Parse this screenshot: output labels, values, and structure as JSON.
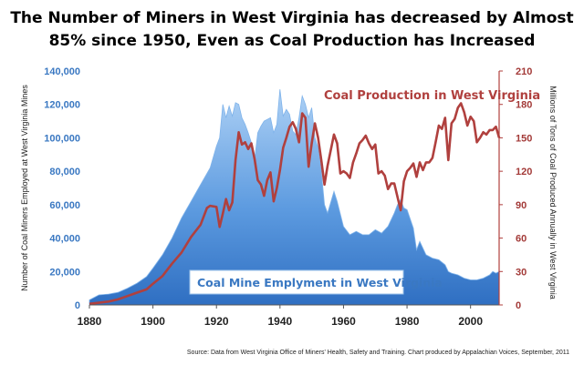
{
  "title_line1": "The Number of Miners in West Virginia has decreased by Almost",
  "title_line2": "85% since 1950, Even as Coal Production has  Increased",
  "source": "Source: Data from West Virginia Office of Miners' Health, Safety and Training. Chart produced by Appalachian Voices, September, 2011",
  "colors": {
    "area": "#4a8fd6",
    "area_top": "#a9cef3",
    "line": "#b0403e",
    "left_axis": "#3a78c2",
    "right_axis": "#a33a38"
  },
  "chart_data": {
    "type": "area",
    "xlabel": "",
    "ylabel": "Number of Coal Miners Employed at West Virginia Mines",
    "y2label": "Millions of Tons of Coal Produced Annually in West Virginia",
    "xlim": [
      1880,
      2009
    ],
    "ylim": [
      0,
      140000
    ],
    "y2lim": [
      0,
      210
    ],
    "x_ticks": [
      "1880",
      "1900",
      "1920",
      "1940",
      "1960",
      "1980",
      "2000"
    ],
    "y_ticks": [
      "0",
      "20,000",
      "40,000",
      "60,000",
      "80,000",
      "100,000",
      "120,000",
      "140,000"
    ],
    "y2_ticks": [
      "0",
      "30",
      "60",
      "90",
      "120",
      "150",
      "180",
      "210"
    ],
    "grid": false,
    "series": [
      {
        "name": "Coal Mine Emplyment in West Virginia",
        "type": "area",
        "axis": "left",
        "x": [
          1880,
          1883,
          1886,
          1889,
          1892,
          1895,
          1898,
          1900,
          1903,
          1906,
          1909,
          1912,
          1915,
          1918,
          1920,
          1921,
          1922,
          1923,
          1924,
          1925,
          1926,
          1927,
          1928,
          1929,
          1930,
          1931,
          1932,
          1933,
          1934,
          1935,
          1936,
          1937,
          1938,
          1939,
          1940,
          1941,
          1942,
          1943,
          1944,
          1945,
          1946,
          1947,
          1948,
          1949,
          1950,
          1951,
          1952,
          1953,
          1954,
          1955,
          1957,
          1958,
          1960,
          1962,
          1964,
          1966,
          1968,
          1970,
          1972,
          1974,
          1976,
          1977,
          1978,
          1979,
          1980,
          1982,
          1983,
          1984,
          1986,
          1988,
          1990,
          1992,
          1993,
          1994,
          1996,
          1998,
          2000,
          2002,
          2004,
          2006,
          2007,
          2008,
          2009
        ],
        "values": [
          3000,
          6000,
          6500,
          7500,
          10000,
          13000,
          17000,
          22000,
          30000,
          40000,
          52000,
          62000,
          72000,
          82000,
          95000,
          100000,
          120000,
          112000,
          119000,
          113000,
          121000,
          120000,
          112000,
          108000,
          103000,
          97000,
          87000,
          103000,
          107000,
          110000,
          111000,
          112000,
          103000,
          108000,
          129000,
          113000,
          117000,
          114000,
          104000,
          102000,
          112000,
          125000,
          120000,
          112000,
          118000,
          100000,
          94000,
          80000,
          60000,
          55000,
          68000,
          62000,
          47000,
          42000,
          44000,
          42000,
          42000,
          45000,
          43000,
          47000,
          55000,
          60000,
          63000,
          58000,
          57000,
          46000,
          33000,
          38000,
          30000,
          28000,
          27000,
          24000,
          20000,
          19000,
          18000,
          16000,
          15000,
          15000,
          16000,
          18000,
          20000,
          19000,
          20000
        ]
      },
      {
        "name": "Coal Production in West Virginia",
        "type": "line",
        "axis": "right",
        "x": [
          1880,
          1883,
          1886,
          1889,
          1892,
          1895,
          1898,
          1900,
          1903,
          1906,
          1909,
          1912,
          1915,
          1917,
          1918,
          1920,
          1921,
          1922,
          1923,
          1924,
          1925,
          1926,
          1927,
          1928,
          1929,
          1930,
          1931,
          1932,
          1933,
          1934,
          1935,
          1936,
          1937,
          1938,
          1939,
          1940,
          1941,
          1942,
          1943,
          1944,
          1945,
          1946,
          1947,
          1948,
          1949,
          1950,
          1951,
          1952,
          1953,
          1954,
          1955,
          1956,
          1957,
          1958,
          1959,
          1960,
          1961,
          1962,
          1963,
          1964,
          1965,
          1966,
          1967,
          1968,
          1969,
          1970,
          1971,
          1972,
          1973,
          1974,
          1975,
          1976,
          1977,
          1978,
          1979,
          1980,
          1981,
          1982,
          1983,
          1984,
          1985,
          1986,
          1987,
          1988,
          1989,
          1990,
          1991,
          1992,
          1993,
          1994,
          1995,
          1996,
          1997,
          1998,
          1999,
          2000,
          2001,
          2002,
          2003,
          2004,
          2005,
          2006,
          2007,
          2008,
          2009
        ],
        "values": [
          1,
          2,
          3,
          5,
          8,
          11,
          14,
          19,
          26,
          37,
          47,
          61,
          72,
          87,
          89,
          88,
          70,
          82,
          95,
          85,
          92,
          130,
          155,
          144,
          146,
          140,
          145,
          131,
          112,
          108,
          98,
          112,
          119,
          93,
          105,
          121,
          141,
          150,
          160,
          164,
          158,
          146,
          172,
          168,
          124,
          145,
          163,
          150,
          130,
          108,
          125,
          139,
          153,
          145,
          118,
          120,
          118,
          114,
          128,
          136,
          145,
          148,
          152,
          145,
          140,
          144,
          118,
          120,
          116,
          104,
          109,
          109,
          97,
          85,
          111,
          120,
          123,
          127,
          115,
          128,
          121,
          128,
          128,
          132,
          146,
          161,
          158,
          168,
          130,
          163,
          167,
          177,
          181,
          173,
          161,
          169,
          165,
          146,
          150,
          155,
          153,
          157,
          157,
          160,
          150
        ]
      }
    ],
    "annotations": [
      "Coal Production in West Virginia",
      "Coal Mine Emplyment in West Virginia"
    ]
  }
}
